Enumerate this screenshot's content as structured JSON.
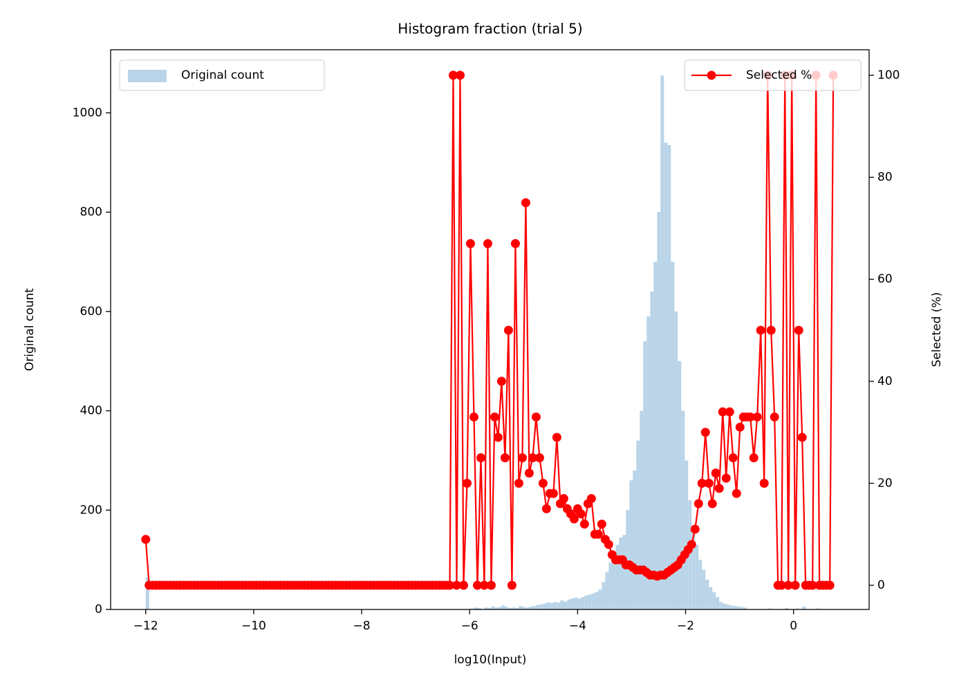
{
  "chart_data": {
    "type": "histogram",
    "title": "Histogram fraction (trial 5)",
    "xlabel": "log10(Input)",
    "ylabel": "Original count",
    "y2label": "Selected (%)",
    "xlim": [
      -12.65,
      1.4
    ],
    "ylim": [
      0,
      1127
    ],
    "y2lim": [
      -4.74,
      105
    ],
    "xticks": [
      {
        "value": -12,
        "label": "−12"
      },
      {
        "value": -10,
        "label": "−10"
      },
      {
        "value": -8,
        "label": "−8"
      },
      {
        "value": -6,
        "label": "−6"
      },
      {
        "value": -4,
        "label": "−4"
      },
      {
        "value": -2,
        "label": "−2"
      },
      0
    ],
    "yticks": [
      0,
      200,
      400,
      600,
      800,
      1000
    ],
    "y2ticks": [
      0,
      20,
      40,
      60,
      80,
      100
    ],
    "bins": [
      -12,
      -11.936,
      -11.872,
      -11.808,
      -11.744,
      -11.68,
      -11.616,
      -11.552,
      -11.488,
      -11.424,
      -11.36,
      -11.296,
      -11.232,
      -11.168,
      -11.104,
      -11.04,
      -10.976,
      -10.912,
      -10.848,
      -10.784,
      -10.72,
      -10.656,
      -10.592,
      -10.528,
      -10.464,
      -10.4,
      -10.336,
      -10.272,
      -10.208,
      -10.144,
      -10.08,
      -10.016,
      -9.952,
      -9.888,
      -9.824,
      -9.76,
      -9.696,
      -9.632,
      -9.568,
      -9.504,
      -9.44,
      -9.376,
      -9.312,
      -9.248,
      -9.184,
      -9.12,
      -9.056,
      -8.992,
      -8.928,
      -8.864,
      -8.8,
      -8.736,
      -8.672,
      -8.608,
      -8.544,
      -8.48,
      -8.416,
      -8.352,
      -8.288,
      -8.224,
      -8.16,
      -8.096,
      -8.032,
      -7.968,
      -7.904,
      -7.84,
      -7.776,
      -7.712,
      -7.648,
      -7.584,
      -7.52,
      -7.456,
      -7.392,
      -7.328,
      -7.264,
      -7.2,
      -7.136,
      -7.072,
      -7.008,
      -6.944,
      -6.88,
      -6.816,
      -6.752,
      -6.688,
      -6.624,
      -6.56,
      -6.496,
      -6.432,
      -6.368,
      -6.304,
      -6.24,
      -6.176,
      -6.112,
      -6.048,
      -5.984,
      -5.92,
      -5.856,
      -5.792,
      -5.728,
      -5.664,
      -5.6,
      -5.536,
      -5.472,
      -5.408,
      -5.344,
      -5.28,
      -5.216,
      -5.152,
      -5.088,
      -5.024,
      -4.96,
      -4.896,
      -4.832,
      -4.768,
      -4.704,
      -4.64,
      -4.576,
      -4.512,
      -4.448,
      -4.384,
      -4.32,
      -4.256,
      -4.192,
      -4.128,
      -4.064,
      -4,
      -3.936,
      -3.872,
      -3.808,
      -3.744,
      -3.68,
      -3.616,
      -3.552,
      -3.488,
      -3.424,
      -3.36,
      -3.296,
      -3.232,
      -3.168,
      -3.104,
      -3.04,
      -2.976,
      -2.912,
      -2.848,
      -2.784,
      -2.72,
      -2.656,
      -2.592,
      -2.528,
      -2.464,
      -2.4,
      -2.336,
      -2.272,
      -2.208,
      -2.144,
      -2.08,
      -2.016,
      -1.952,
      -1.888,
      -1.824,
      -1.76,
      -1.696,
      -1.632,
      -1.568,
      -1.504,
      -1.44,
      -1.376,
      -1.312,
      -1.248,
      -1.184,
      -1.12,
      -1.056,
      -0.992,
      -0.928,
      -0.864,
      -0.8,
      -0.736,
      -0.672,
      -0.608,
      -0.544,
      -0.48,
      -0.416,
      -0.352,
      -0.288,
      -0.224,
      -0.16,
      -0.096,
      -0.032,
      0.032,
      0.096,
      0.16,
      0.224,
      0.288,
      0.352,
      0.416,
      0.48,
      0.544,
      0.608,
      0.672,
      0.736,
      0.8
    ],
    "series": [
      {
        "name": "Original count",
        "type": "histogram",
        "color": "#b9d4e8",
        "legend": "upper left",
        "values": [
          65,
          0,
          0,
          0,
          0,
          0,
          0,
          0,
          0,
          0,
          0,
          0,
          0,
          0,
          0,
          0,
          0,
          0,
          0,
          0,
          0,
          0,
          0,
          0,
          0,
          0,
          0,
          0,
          0,
          0,
          0,
          0,
          0,
          0,
          0,
          0,
          0,
          0,
          0,
          0,
          0,
          0,
          0,
          0,
          0,
          0,
          0,
          0,
          0,
          0,
          0,
          0,
          0,
          0,
          0,
          0,
          0,
          0,
          0,
          0,
          0,
          0,
          0,
          0,
          0,
          0,
          0,
          0,
          0,
          0,
          0,
          0,
          0,
          0,
          0,
          0,
          0,
          0,
          0,
          0,
          0,
          0,
          0,
          0,
          0,
          0,
          0,
          0,
          0,
          0,
          0,
          0,
          0,
          0,
          2,
          4,
          3,
          1,
          4,
          3,
          6,
          4,
          5,
          8,
          5,
          3,
          4,
          3,
          7,
          5,
          4,
          6,
          7,
          9,
          10,
          12,
          14,
          13,
          15,
          14,
          18,
          16,
          20,
          22,
          24,
          22,
          25,
          28,
          30,
          32,
          35,
          40,
          55,
          75,
          95,
          110,
          130,
          145,
          150,
          200,
          260,
          280,
          340,
          400,
          540,
          590,
          640,
          700,
          800,
          1075,
          940,
          935,
          700,
          600,
          500,
          400,
          300,
          220,
          170,
          130,
          100,
          80,
          60,
          45,
          35,
          25,
          15,
          12,
          10,
          8,
          7,
          6,
          5,
          4,
          0,
          0,
          0,
          0,
          0,
          0,
          2,
          0,
          0,
          0,
          0,
          3,
          0,
          0,
          2,
          0,
          6,
          0,
          0,
          0,
          2,
          0,
          0,
          1,
          0,
          1
        ]
      },
      {
        "name": "Selected %",
        "type": "line",
        "axis": "y2",
        "color": "#ff0000",
        "marker": "o",
        "legend": "upper right",
        "x": [
          -12,
          -11.936,
          -11.872,
          -11.808,
          -11.744,
          -11.68,
          -11.616,
          -11.552,
          -11.488,
          -11.424,
          -11.36,
          -11.296,
          -11.232,
          -11.168,
          -11.104,
          -11.04,
          -10.976,
          -10.912,
          -10.848,
          -10.784,
          -10.72,
          -10.656,
          -10.592,
          -10.528,
          -10.464,
          -10.4,
          -10.336,
          -10.272,
          -10.208,
          -10.144,
          -10.08,
          -10.016,
          -9.952,
          -9.888,
          -9.824,
          -9.76,
          -9.696,
          -9.632,
          -9.568,
          -9.504,
          -9.44,
          -9.376,
          -9.312,
          -9.248,
          -9.184,
          -9.12,
          -9.056,
          -8.992,
          -8.928,
          -8.864,
          -8.8,
          -8.736,
          -8.672,
          -8.608,
          -8.544,
          -8.48,
          -8.416,
          -8.352,
          -8.288,
          -8.224,
          -8.16,
          -8.096,
          -8.032,
          -7.968,
          -7.904,
          -7.84,
          -7.776,
          -7.712,
          -7.648,
          -7.584,
          -7.52,
          -7.456,
          -7.392,
          -7.328,
          -7.264,
          -7.2,
          -7.136,
          -7.072,
          -7.008,
          -6.944,
          -6.88,
          -6.816,
          -6.752,
          -6.688,
          -6.624,
          -6.56,
          -6.496,
          -6.432,
          -6.368,
          -6.304,
          -6.24,
          -6.176,
          -6.112,
          -6.048,
          -5.984,
          -5.92,
          -5.856,
          -5.792,
          -5.728,
          -5.664,
          -5.6,
          -5.536,
          -5.472,
          -5.408,
          -5.344,
          -5.28,
          -5.216,
          -5.152,
          -5.088,
          -5.024,
          -4.96,
          -4.896,
          -4.832,
          -4.768,
          -4.704,
          -4.64,
          -4.576,
          -4.512,
          -4.448,
          -4.384,
          -4.32,
          -4.256,
          -4.192,
          -4.128,
          -4.064,
          -4,
          -3.936,
          -3.872,
          -3.808,
          -3.744,
          -3.68,
          -3.616,
          -3.552,
          -3.488,
          -3.424,
          -3.36,
          -3.296,
          -3.232,
          -3.168,
          -3.104,
          -3.04,
          -2.976,
          -2.912,
          -2.848,
          -2.784,
          -2.72,
          -2.656,
          -2.592,
          -2.528,
          -2.464,
          -2.4,
          -2.336,
          -2.272,
          -2.208,
          -2.144,
          -2.08,
          -2.016,
          -1.952,
          -1.888,
          -1.824,
          -1.76,
          -1.696,
          -1.632,
          -1.568,
          -1.504,
          -1.44,
          -1.376,
          -1.312,
          -1.248,
          -1.184,
          -1.12,
          -1.056,
          -0.992,
          -0.928,
          -0.864,
          -0.8,
          -0.736,
          -0.672,
          -0.608,
          -0.544,
          -0.48,
          -0.416,
          -0.352,
          -0.288,
          -0.224,
          -0.16,
          -0.096,
          -0.032,
          0.032,
          0.096,
          0.16,
          0.224,
          0.288,
          0.352,
          0.416,
          0.48,
          0.544,
          0.608,
          0.672,
          0.736
        ],
        "values": [
          9,
          0,
          0,
          0,
          0,
          0,
          0,
          0,
          0,
          0,
          0,
          0,
          0,
          0,
          0,
          0,
          0,
          0,
          0,
          0,
          0,
          0,
          0,
          0,
          0,
          0,
          0,
          0,
          0,
          0,
          0,
          0,
          0,
          0,
          0,
          0,
          0,
          0,
          0,
          0,
          0,
          0,
          0,
          0,
          0,
          0,
          0,
          0,
          0,
          0,
          0,
          0,
          0,
          0,
          0,
          0,
          0,
          0,
          0,
          0,
          0,
          0,
          0,
          0,
          0,
          0,
          0,
          0,
          0,
          0,
          0,
          0,
          0,
          0,
          0,
          0,
          0,
          0,
          0,
          0,
          0,
          0,
          0,
          0,
          0,
          0,
          0,
          0,
          0,
          100,
          0,
          100,
          0,
          20,
          67,
          33,
          0,
          25,
          0,
          67,
          0,
          33,
          29,
          40,
          25,
          50,
          0,
          67,
          20,
          25,
          75,
          22,
          25,
          33,
          25,
          20,
          15,
          18,
          18,
          29,
          16,
          17,
          15,
          14,
          13,
          15,
          14,
          12,
          16,
          17,
          10,
          10,
          12,
          9,
          8,
          6,
          5,
          5,
          5,
          4,
          4,
          3.5,
          3,
          3,
          3,
          2.5,
          2,
          2,
          1.8,
          2,
          2,
          2.5,
          3,
          3.5,
          4,
          5,
          6,
          7,
          8,
          11,
          16,
          20,
          30,
          20,
          16,
          22,
          19,
          34,
          21,
          34,
          25,
          18,
          31,
          33,
          33,
          33,
          25,
          33,
          50,
          20,
          100,
          50,
          33,
          0,
          0,
          100,
          0,
          100,
          0,
          50,
          29,
          0,
          0,
          0,
          100,
          0,
          0,
          0,
          0,
          100
        ]
      }
    ]
  }
}
